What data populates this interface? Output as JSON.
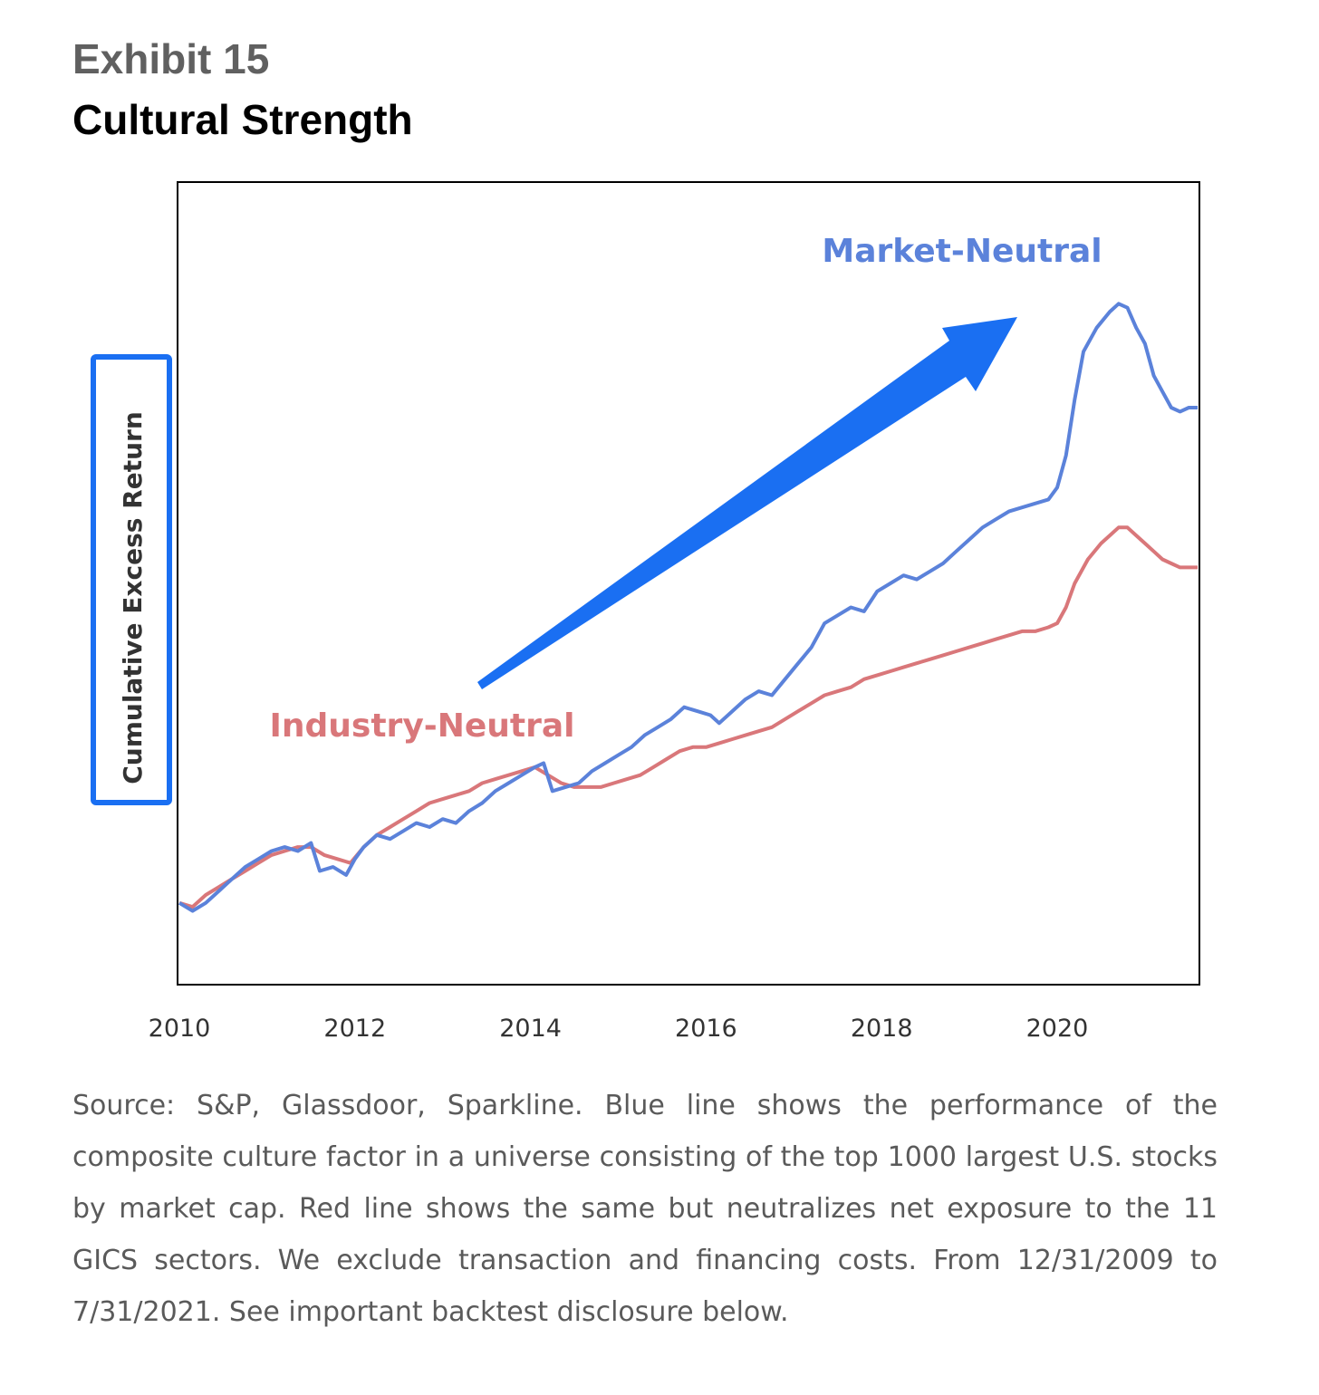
{
  "header": {
    "exhibit": "Exhibit 15",
    "title": "Cultural Strength"
  },
  "chart_data": {
    "type": "line",
    "title": "Cultural Strength",
    "xlabel": "",
    "ylabel": "Cumulative Excess Return",
    "x_ticks": [
      "2010",
      "2012",
      "2014",
      "2016",
      "2018",
      "2020"
    ],
    "xlim": [
      2010.0,
      2021.6
    ],
    "ylim": [
      0,
      100
    ],
    "y_tick_labels": "none",
    "grid": false,
    "legend": "inline labels",
    "annotation": "upward arrow",
    "series": [
      {
        "name": "Market-Neutral",
        "color": "#5b82da",
        "points": [
          [
            2010.0,
            10
          ],
          [
            2010.15,
            9
          ],
          [
            2010.3,
            10
          ],
          [
            2010.45,
            11.5
          ],
          [
            2010.6,
            13
          ],
          [
            2010.75,
            14.5
          ],
          [
            2010.9,
            15.5
          ],
          [
            2011.05,
            16.5
          ],
          [
            2011.2,
            17
          ],
          [
            2011.35,
            16.5
          ],
          [
            2011.5,
            17.5
          ],
          [
            2011.6,
            14
          ],
          [
            2011.75,
            14.5
          ],
          [
            2011.9,
            13.5
          ],
          [
            2012.0,
            15.5
          ],
          [
            2012.1,
            17
          ],
          [
            2012.25,
            18.5
          ],
          [
            2012.4,
            18
          ],
          [
            2012.55,
            19
          ],
          [
            2012.7,
            20
          ],
          [
            2012.85,
            19.5
          ],
          [
            2013.0,
            20.5
          ],
          [
            2013.15,
            20
          ],
          [
            2013.3,
            21.5
          ],
          [
            2013.45,
            22.5
          ],
          [
            2013.6,
            24
          ],
          [
            2013.75,
            25
          ],
          [
            2013.9,
            26
          ],
          [
            2014.05,
            27
          ],
          [
            2014.15,
            27.5
          ],
          [
            2014.25,
            24
          ],
          [
            2014.4,
            24.5
          ],
          [
            2014.55,
            25
          ],
          [
            2014.7,
            26.5
          ],
          [
            2014.85,
            27.5
          ],
          [
            2015.0,
            28.5
          ],
          [
            2015.15,
            29.5
          ],
          [
            2015.3,
            31
          ],
          [
            2015.45,
            32
          ],
          [
            2015.6,
            33
          ],
          [
            2015.75,
            34.5
          ],
          [
            2015.9,
            34
          ],
          [
            2016.05,
            33.5
          ],
          [
            2016.15,
            32.5
          ],
          [
            2016.3,
            34
          ],
          [
            2016.45,
            35.5
          ],
          [
            2016.6,
            36.5
          ],
          [
            2016.75,
            36
          ],
          [
            2016.9,
            38
          ],
          [
            2017.05,
            40
          ],
          [
            2017.2,
            42
          ],
          [
            2017.35,
            45
          ],
          [
            2017.5,
            46
          ],
          [
            2017.65,
            47
          ],
          [
            2017.8,
            46.5
          ],
          [
            2017.95,
            49
          ],
          [
            2018.1,
            50
          ],
          [
            2018.25,
            51
          ],
          [
            2018.4,
            50.5
          ],
          [
            2018.55,
            51.5
          ],
          [
            2018.7,
            52.5
          ],
          [
            2018.85,
            54
          ],
          [
            2019.0,
            55.5
          ],
          [
            2019.15,
            57
          ],
          [
            2019.3,
            58
          ],
          [
            2019.45,
            59
          ],
          [
            2019.6,
            59.5
          ],
          [
            2019.75,
            60
          ],
          [
            2019.9,
            60.5
          ],
          [
            2020.0,
            62
          ],
          [
            2020.1,
            66
          ],
          [
            2020.2,
            73
          ],
          [
            2020.3,
            79
          ],
          [
            2020.45,
            82
          ],
          [
            2020.6,
            84
          ],
          [
            2020.7,
            85
          ],
          [
            2020.8,
            84.5
          ],
          [
            2020.9,
            82
          ],
          [
            2021.0,
            80
          ],
          [
            2021.1,
            76
          ],
          [
            2021.2,
            74
          ],
          [
            2021.3,
            72
          ],
          [
            2021.4,
            71.5
          ],
          [
            2021.5,
            72
          ],
          [
            2021.6,
            72
          ]
        ]
      },
      {
        "name": "Industry-Neutral",
        "color": "#d9777a",
        "points": [
          [
            2010.0,
            10
          ],
          [
            2010.15,
            9.5
          ],
          [
            2010.3,
            11
          ],
          [
            2010.45,
            12
          ],
          [
            2010.6,
            13
          ],
          [
            2010.75,
            14
          ],
          [
            2010.9,
            15
          ],
          [
            2011.05,
            16
          ],
          [
            2011.2,
            16.5
          ],
          [
            2011.35,
            17
          ],
          [
            2011.5,
            17
          ],
          [
            2011.65,
            16
          ],
          [
            2011.8,
            15.5
          ],
          [
            2011.95,
            15
          ],
          [
            2012.1,
            17
          ],
          [
            2012.25,
            18.5
          ],
          [
            2012.4,
            19.5
          ],
          [
            2012.55,
            20.5
          ],
          [
            2012.7,
            21.5
          ],
          [
            2012.85,
            22.5
          ],
          [
            2013.0,
            23
          ],
          [
            2013.15,
            23.5
          ],
          [
            2013.3,
            24
          ],
          [
            2013.45,
            25
          ],
          [
            2013.6,
            25.5
          ],
          [
            2013.75,
            26
          ],
          [
            2013.9,
            26.5
          ],
          [
            2014.05,
            27
          ],
          [
            2014.2,
            26
          ],
          [
            2014.35,
            25
          ],
          [
            2014.5,
            24.5
          ],
          [
            2014.65,
            24.5
          ],
          [
            2014.8,
            24.5
          ],
          [
            2014.95,
            25
          ],
          [
            2015.1,
            25.5
          ],
          [
            2015.25,
            26
          ],
          [
            2015.4,
            27
          ],
          [
            2015.55,
            28
          ],
          [
            2015.7,
            29
          ],
          [
            2015.85,
            29.5
          ],
          [
            2016.0,
            29.5
          ],
          [
            2016.15,
            30
          ],
          [
            2016.3,
            30.5
          ],
          [
            2016.45,
            31
          ],
          [
            2016.6,
            31.5
          ],
          [
            2016.75,
            32
          ],
          [
            2016.9,
            33
          ],
          [
            2017.05,
            34
          ],
          [
            2017.2,
            35
          ],
          [
            2017.35,
            36
          ],
          [
            2017.5,
            36.5
          ],
          [
            2017.65,
            37
          ],
          [
            2017.8,
            38
          ],
          [
            2017.95,
            38.5
          ],
          [
            2018.1,
            39
          ],
          [
            2018.25,
            39.5
          ],
          [
            2018.4,
            40
          ],
          [
            2018.55,
            40.5
          ],
          [
            2018.7,
            41
          ],
          [
            2018.85,
            41.5
          ],
          [
            2019.0,
            42
          ],
          [
            2019.15,
            42.5
          ],
          [
            2019.3,
            43
          ],
          [
            2019.45,
            43.5
          ],
          [
            2019.6,
            44
          ],
          [
            2019.75,
            44
          ],
          [
            2019.9,
            44.5
          ],
          [
            2020.0,
            45
          ],
          [
            2020.1,
            47
          ],
          [
            2020.2,
            50
          ],
          [
            2020.35,
            53
          ],
          [
            2020.5,
            55
          ],
          [
            2020.6,
            56
          ],
          [
            2020.7,
            57
          ],
          [
            2020.8,
            57
          ],
          [
            2020.9,
            56
          ],
          [
            2021.0,
            55
          ],
          [
            2021.1,
            54
          ],
          [
            2021.2,
            53
          ],
          [
            2021.3,
            52.5
          ],
          [
            2021.4,
            52
          ],
          [
            2021.5,
            52
          ],
          [
            2021.6,
            52
          ]
        ]
      }
    ]
  },
  "caption": "Source: S&P, Glassdoor, Sparkline. Blue line shows the performance of the composite culture factor in a universe consisting of the top 1000 largest U.S. stocks by market cap. Red line shows the same but neutralizes net exposure to the 11 GICS sectors. We exclude transaction and financing costs. From 12/31/2009 to 7/31/2021. See important backtest disclosure below.",
  "colors": {
    "arrow": "#1a6ff2",
    "ylabel_box": "#1a6ff2",
    "frame": "#000000"
  }
}
